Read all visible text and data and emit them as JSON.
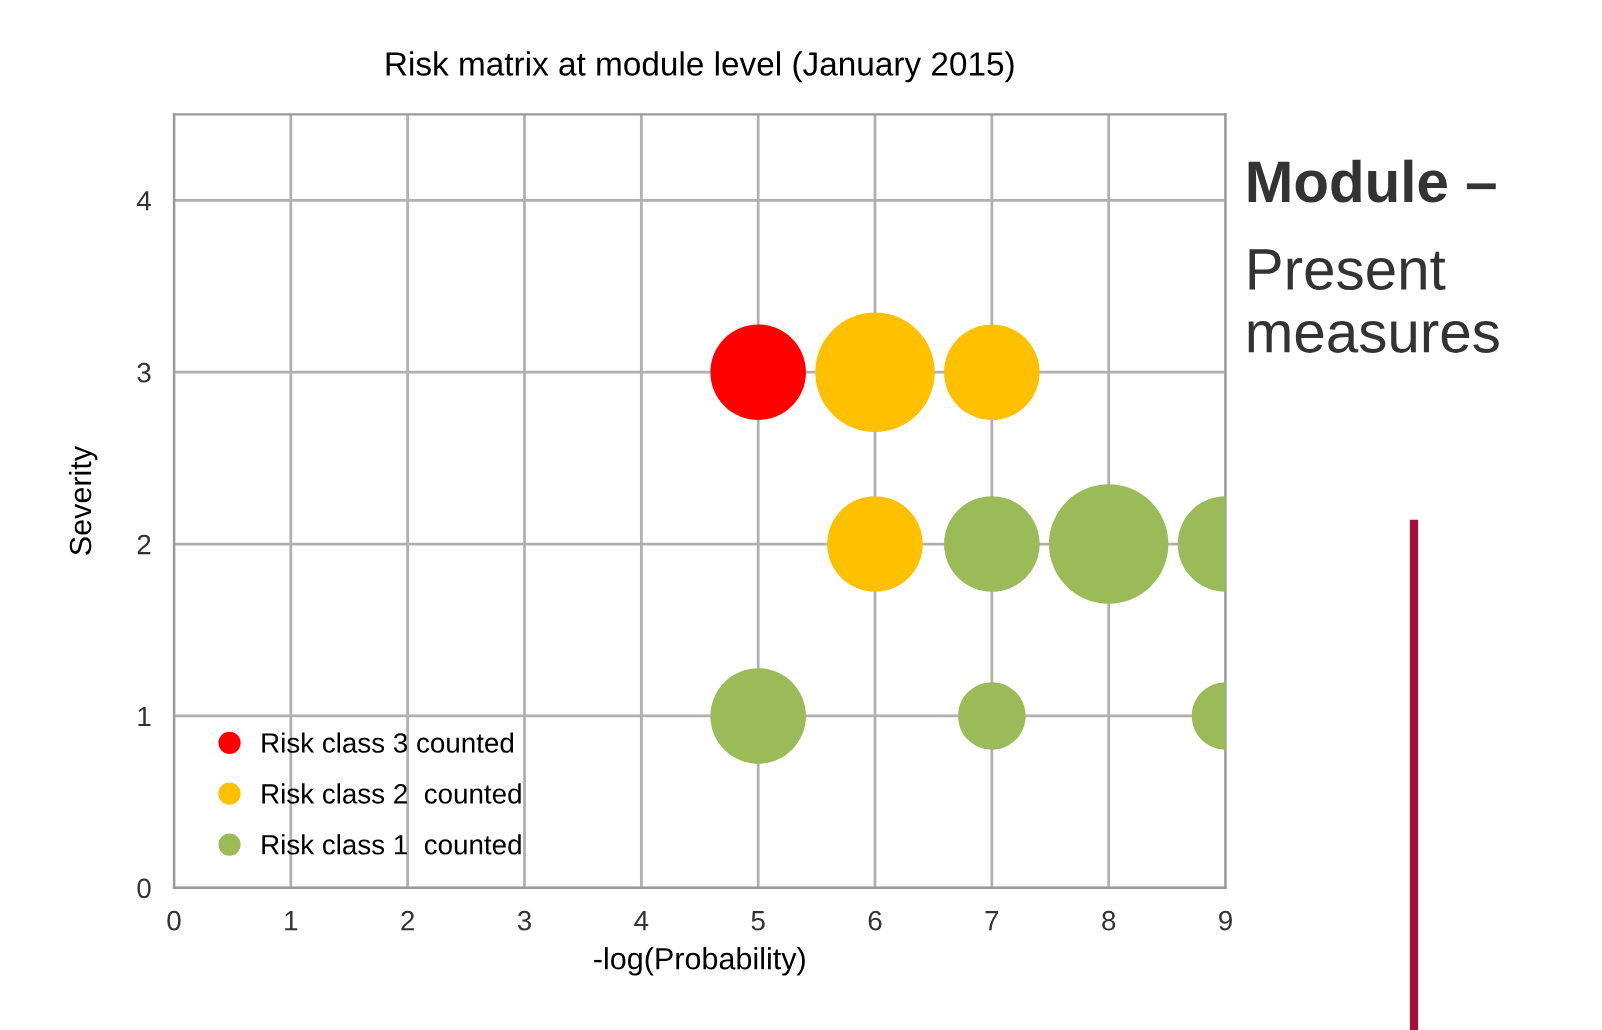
{
  "chart_data": {
    "type": "bubble",
    "title": "Risk matrix at module level (January 2015)",
    "xlabel": "-log(Probability)",
    "ylabel": "Severity",
    "xlim": [
      0,
      9
    ],
    "xticks": [
      0,
      1,
      2,
      3,
      4,
      5,
      6,
      7,
      8,
      9
    ],
    "ylim": [
      0,
      4.5
    ],
    "yticks": [
      0,
      1,
      2,
      3,
      4
    ],
    "grid": true,
    "legend": "bottom left",
    "marker": "circle",
    "series": [
      {
        "name": "Risk class 3 counted",
        "color": "#ff0000",
        "x": [
          5
        ],
        "values": [
          3
        ],
        "sizes": [
          0.64
        ]
      },
      {
        "name": "Risk class 2  counted",
        "color": "#ffc000",
        "x": [
          6,
          7,
          6
        ],
        "values": [
          3,
          3,
          2
        ],
        "sizes": [
          1,
          0.64,
          0.64
        ]
      },
      {
        "name": "Risk class 1  counted",
        "color": "#9bbb59",
        "x": [
          7,
          8,
          9,
          5,
          7,
          9
        ],
        "values": [
          2,
          2,
          2,
          1,
          1,
          1
        ],
        "sizes": [
          0.64,
          1,
          0.64,
          0.64,
          0.32,
          0.32
        ]
      }
    ],
    "annotations": [
      "Module –",
      "Present measures"
    ]
  }
}
